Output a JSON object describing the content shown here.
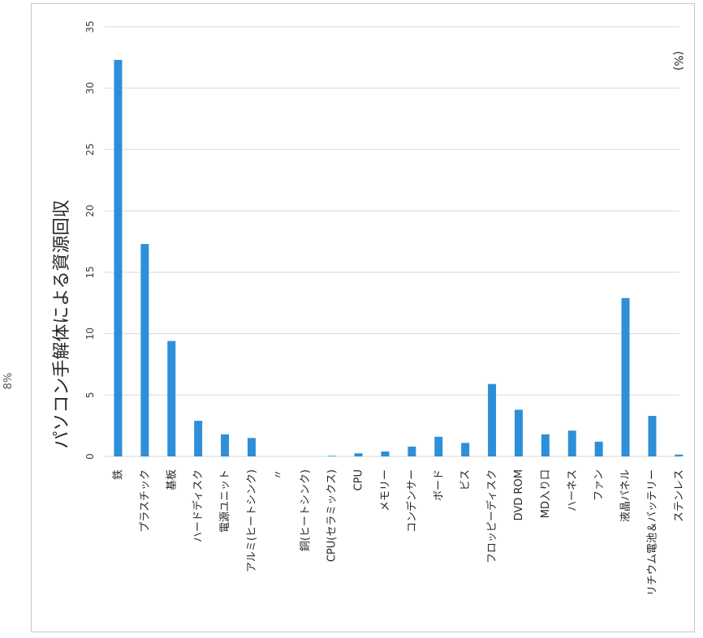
{
  "chart_data": {
    "type": "bar",
    "title": "パソコン手解体による資源回収",
    "unit_label": "(%)",
    "edge_mark": "8%",
    "categories": [
      "鉄",
      "プラスチック",
      "基板",
      "ハードディスク",
      "電源ユニット",
      "アルミ(ヒートシンク)",
      "〃",
      "銅(ヒートシンク)",
      "CPU(セラミックス)",
      "CPU",
      "メモリー",
      "コンデンサー",
      "ボード",
      "ビス",
      "フロッピーディスク",
      "DVD ROM",
      "MD入り口",
      "ハーネス",
      "ファン",
      "液晶パネル",
      "リチウム電池＆バッテリー",
      "ステンレス"
    ],
    "values": [
      32.3,
      17.3,
      9.4,
      2.9,
      1.8,
      1.5,
      0,
      0,
      0.05,
      0.25,
      0.4,
      0.8,
      1.6,
      1.1,
      5.9,
      3.8,
      1.8,
      2.1,
      1.2,
      12.9,
      3.3,
      0.15
    ],
    "ylim": [
      0,
      35
    ],
    "yticks": [
      0,
      5,
      10,
      15,
      20,
      25,
      30,
      35
    ],
    "grid": true,
    "legend": "none",
    "color": "#2e8fd8"
  }
}
